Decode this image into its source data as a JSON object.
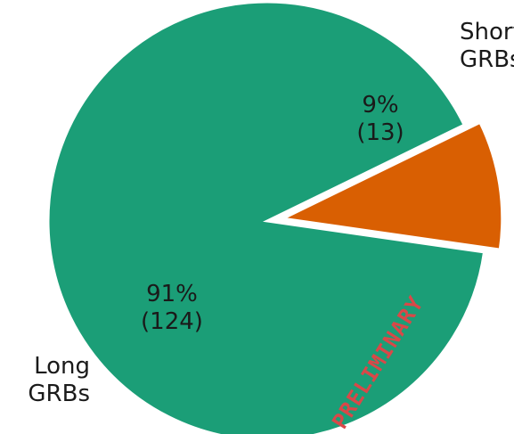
{
  "chart_data": {
    "type": "pie",
    "slices": [
      {
        "label_line1": "Long",
        "label_line2": "GRBs",
        "value": 124,
        "percent": 91,
        "percent_text": "91%",
        "count_text": "(124)",
        "color": "#1b9e77",
        "exploded": false
      },
      {
        "label_line1": "Short",
        "label_line2": "GRBs",
        "value": 13,
        "percent": 9,
        "percent_text": "9%",
        "count_text": "(13)",
        "color": "#d95f02",
        "exploded": true
      }
    ],
    "start_angle_deg": 26,
    "direction": "counterclockwise",
    "watermark": "PRELIMINARY",
    "title": "",
    "legend": "none"
  }
}
